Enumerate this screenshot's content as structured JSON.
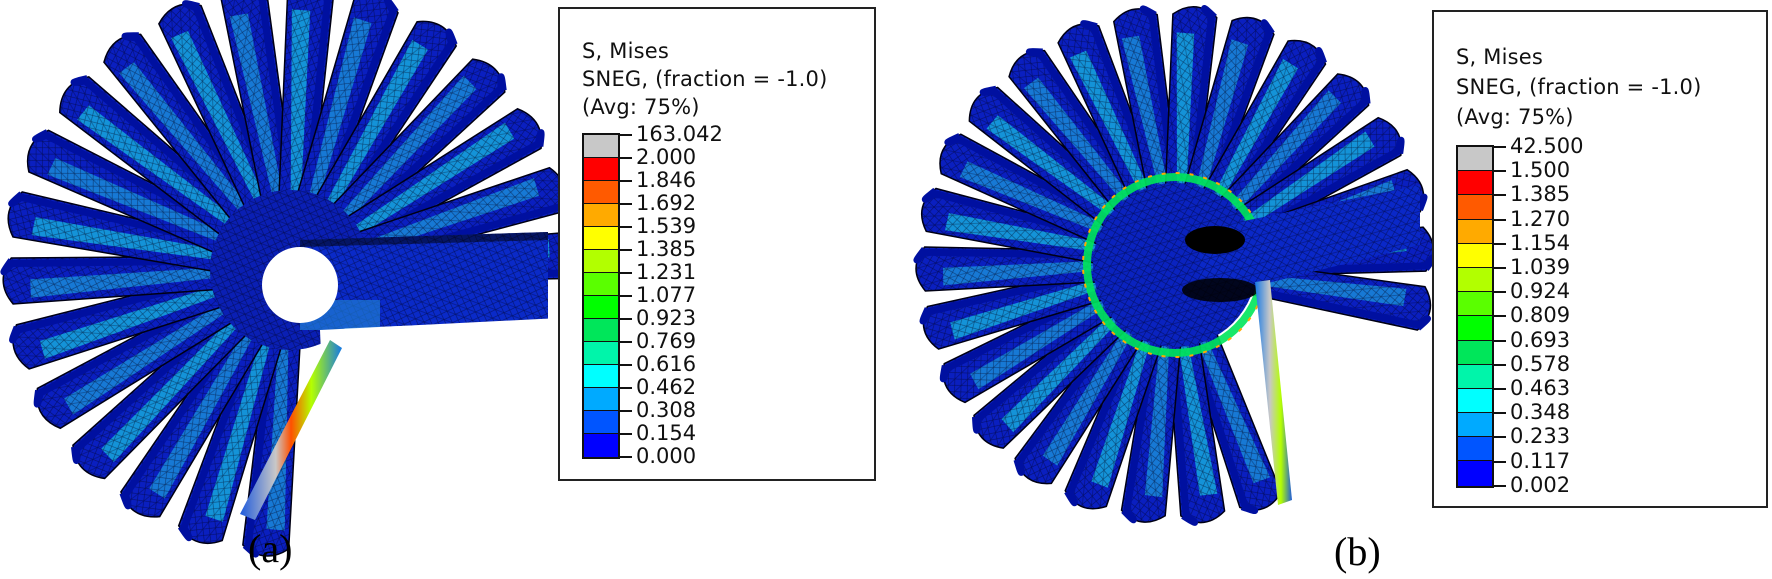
{
  "figure": {
    "panels": [
      {
        "id": "a",
        "caption": "(a)",
        "legend": {
          "title_lines": [
            "S, Mises",
            "SNEG, (fraction = -1.0)",
            "(Avg: 75%)"
          ],
          "tick_labels": [
            "163.042",
            "2.000",
            "1.846",
            "1.692",
            "1.539",
            "1.385",
            "1.231",
            "1.077",
            "0.923",
            "0.769",
            "0.616",
            "0.462",
            "0.308",
            "0.154",
            "0.000"
          ],
          "colors": [
            "#c8c8c8",
            "#ff0000",
            "#ff5a00",
            "#ffaa00",
            "#ffff00",
            "#b2ff00",
            "#5aff00",
            "#00ff00",
            "#00e65a",
            "#00f5aa",
            "#00ffff",
            "#00aaff",
            "#0055ff",
            "#0000ff"
          ]
        }
      },
      {
        "id": "b",
        "caption": "(b)",
        "legend": {
          "title_lines": [
            "S, Mises",
            "SNEG, (fraction = -1.0)",
            "(Avg: 75%)"
          ],
          "tick_labels": [
            "42.500",
            "1.500",
            "1.385",
            "1.270",
            "1.154",
            "1.039",
            "0.924",
            "0.809",
            "0.693",
            "0.578",
            "0.463",
            "0.348",
            "0.233",
            "0.117",
            "0.002"
          ],
          "colors": [
            "#c8c8c8",
            "#ff0000",
            "#ff5a00",
            "#ffaa00",
            "#ffff00",
            "#b2ff00",
            "#5aff00",
            "#00ff00",
            "#00e65a",
            "#00f5aa",
            "#00ffff",
            "#00aaff",
            "#0055ff",
            "#0000ff"
          ]
        }
      }
    ],
    "model_colors": {
      "base_blue": "#0a1fc8",
      "mid_blue": "#0a5ad2",
      "cyan_highlight": "#19c3e6",
      "mesh_line": "#000022"
    }
  }
}
